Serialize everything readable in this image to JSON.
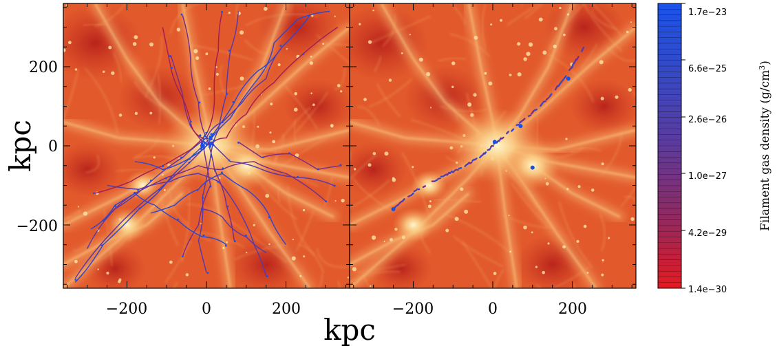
{
  "chart_data": {
    "type": "heatmap",
    "panels": [
      {
        "name": "left",
        "x_ticks": [
          -200,
          0,
          200
        ],
        "y_ticks": [
          200,
          0,
          -200
        ],
        "xlim": [
          -360,
          360
        ],
        "ylim": [
          -360,
          360
        ]
      },
      {
        "name": "right",
        "x_ticks": [
          -200,
          0,
          200
        ],
        "xlim": [
          -360,
          360
        ],
        "ylim": [
          -360,
          360
        ]
      }
    ],
    "xlabel": "kpc",
    "ylabel": "kpc",
    "tick_text": {
      "neg200": "−200",
      "zero": "0",
      "pos200": "200"
    },
    "colorbar": {
      "title": "Filament gas density (g/cm",
      "title_sup": "3",
      "title_end": ")",
      "labels": [
        "1.7e−23",
        "6.6e−25",
        "2.6e−26",
        "1.0e−27",
        "4.2e−29",
        "1.4e−30"
      ],
      "colors": [
        "#1a4fe6",
        "#3347c8",
        "#5a3aa6",
        "#7a2e86",
        "#a21f55",
        "#e01b28"
      ]
    },
    "background_colors": {
      "deep": "#b8241c",
      "mid": "#e25a2c",
      "bright": "#f7b871",
      "peak": "#fff2c0"
    },
    "left_paths": [
      [
        [
          -330,
          -345
        ],
        [
          -260,
          -250
        ],
        [
          -170,
          -160
        ],
        [
          -90,
          -80
        ],
        [
          -30,
          -20
        ],
        [
          10,
          20
        ],
        [
          70,
          110
        ],
        [
          130,
          190
        ],
        [
          190,
          250
        ],
        [
          260,
          330
        ]
      ],
      [
        [
          -330,
          -335
        ],
        [
          -230,
          -210
        ],
        [
          -120,
          -110
        ],
        [
          -40,
          -40
        ],
        [
          10,
          10
        ],
        [
          60,
          -40
        ],
        [
          140,
          -60
        ],
        [
          230,
          -80
        ],
        [
          320,
          -100
        ]
      ],
      [
        [
          -260,
          -190
        ],
        [
          -180,
          -120
        ],
        [
          -100,
          -80
        ],
        [
          -20,
          -50
        ],
        [
          40,
          -60
        ],
        [
          120,
          -40
        ],
        [
          200,
          -70
        ],
        [
          300,
          -140
        ]
      ],
      [
        [
          -280,
          -120
        ],
        [
          -190,
          -90
        ],
        [
          -110,
          -50
        ],
        [
          -40,
          -10
        ],
        [
          0,
          30
        ],
        [
          20,
          120
        ],
        [
          30,
          240
        ],
        [
          40,
          340
        ]
      ],
      [
        [
          -250,
          -100
        ],
        [
          -170,
          -110
        ],
        [
          -90,
          -90
        ],
        [
          -20,
          -70
        ],
        [
          30,
          -90
        ],
        [
          80,
          -160
        ],
        [
          120,
          -250
        ],
        [
          150,
          -330
        ]
      ],
      [
        [
          -180,
          -40
        ],
        [
          -110,
          -60
        ],
        [
          -40,
          -30
        ],
        [
          0,
          0
        ],
        [
          60,
          70
        ],
        [
          130,
          170
        ],
        [
          170,
          260
        ],
        [
          230,
          320
        ],
        [
          310,
          340
        ]
      ],
      [
        [
          -60,
          330
        ],
        [
          -40,
          220
        ],
        [
          -20,
          110
        ],
        [
          0,
          20
        ],
        [
          20,
          -60
        ],
        [
          50,
          -150
        ],
        [
          70,
          -240
        ]
      ],
      [
        [
          80,
          340
        ],
        [
          60,
          240
        ],
        [
          50,
          130
        ],
        [
          30,
          40
        ],
        [
          10,
          -30
        ],
        [
          -10,
          -130
        ],
        [
          -20,
          -240
        ],
        [
          0,
          -320
        ]
      ],
      [
        [
          330,
          300
        ],
        [
          240,
          230
        ],
        [
          170,
          160
        ],
        [
          100,
          80
        ],
        [
          50,
          20
        ],
        [
          10,
          0
        ]
      ],
      [
        [
          -140,
          -170
        ],
        [
          -80,
          -150
        ],
        [
          -20,
          -110
        ],
        [
          40,
          -70
        ],
        [
          100,
          -110
        ],
        [
          160,
          -180
        ],
        [
          200,
          -250
        ]
      ],
      [
        [
          -90,
          230
        ],
        [
          -60,
          130
        ],
        [
          -40,
          50
        ],
        [
          -10,
          10
        ],
        [
          10,
          -100
        ],
        [
          -20,
          -200
        ],
        [
          -60,
          -280
        ]
      ],
      [
        [
          190,
          250
        ],
        [
          150,
          170
        ],
        [
          90,
          110
        ],
        [
          40,
          60
        ],
        [
          0,
          20
        ],
        [
          -60,
          -30
        ],
        [
          -140,
          -90
        ],
        [
          -230,
          -160
        ],
        [
          -300,
          -260
        ]
      ],
      [
        [
          -290,
          -210
        ],
        [
          -230,
          -150
        ],
        [
          -180,
          -120
        ],
        [
          -130,
          -150
        ],
        [
          -70,
          -190
        ],
        [
          -10,
          -230
        ],
        [
          50,
          -250
        ]
      ],
      [
        [
          -110,
          300
        ],
        [
          -90,
          200
        ],
        [
          -70,
          140
        ],
        [
          -40,
          60
        ],
        [
          -10,
          20
        ]
      ],
      [
        [
          -10,
          -160
        ],
        [
          40,
          -180
        ],
        [
          100,
          -230
        ],
        [
          150,
          -270
        ]
      ],
      [
        [
          80,
          10
        ],
        [
          140,
          -30
        ],
        [
          210,
          -20
        ],
        [
          280,
          -60
        ],
        [
          340,
          -50
        ]
      ]
    ],
    "right_path": [
      [
        -250,
        -160
      ],
      [
        -190,
        -110
      ],
      [
        -130,
        -80
      ],
      [
        -70,
        -50
      ],
      [
        -20,
        -20
      ],
      [
        10,
        10
      ],
      [
        60,
        50
      ],
      [
        120,
        100
      ],
      [
        180,
        170
      ],
      [
        230,
        250
      ]
    ]
  }
}
